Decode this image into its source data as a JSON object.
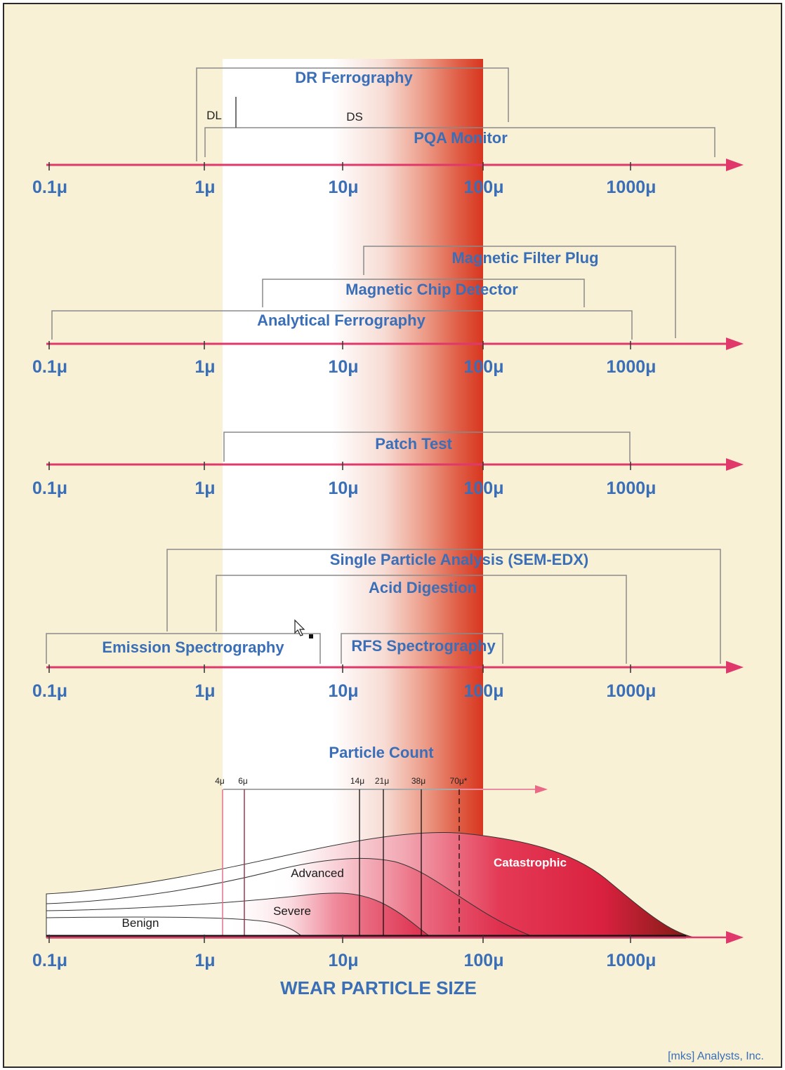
{
  "axis": {
    "tick_labels": [
      "0.1μ",
      "1μ",
      "10μ",
      "100μ",
      "1000μ"
    ],
    "title": "WEAR PARTICLE SIZE"
  },
  "panel1": {
    "dr_ferrography": "DR Ferrography",
    "dl": "DL",
    "ds": "DS",
    "pqa_monitor": "PQA Monitor"
  },
  "panel2": {
    "magnetic_filter_plug": "Magnetic Filter Plug",
    "magnetic_chip_detector": "Magnetic Chip Detector",
    "analytical_ferrography": "Analytical Ferrography"
  },
  "panel3": {
    "patch_test": "Patch Test"
  },
  "panel4": {
    "single_particle_analysis": "Single Particle Analysis (SEM-EDX)",
    "acid_digestion": "Acid Digestion",
    "emission_spectrography": "Emission Spectrography",
    "rfs_spectrography": "RFS Spectrography"
  },
  "panel5": {
    "particle_count": "Particle Count",
    "size_markers": [
      "4μ",
      "6μ",
      "14μ",
      "21μ",
      "38μ",
      "70μ*"
    ],
    "zones": {
      "benign": "Benign",
      "severe": "Severe",
      "advanced": "Advanced",
      "catastrophic": "Catastrophic"
    }
  },
  "credit": "[mks] Analysts, Inc.",
  "colors": {
    "background": "#f8f1d5",
    "axis_arrow": "#e0386a",
    "label_blue": "#3a6fb8",
    "danger_red": "#d8361f",
    "bracket_gray": "#8a8a8a"
  }
}
